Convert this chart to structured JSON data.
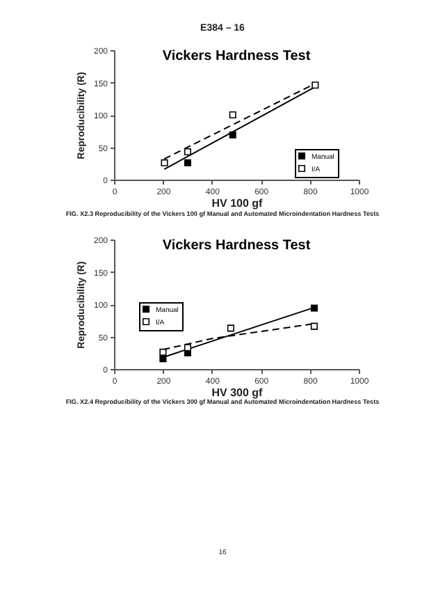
{
  "chart_data": [
    {
      "type": "scatter",
      "title": "Vickers Hardness Test",
      "xlabel": "HV 100 gf",
      "ylabel": "Reproducibility (R)",
      "annotations": [
        "E384 – 16",
        "FIG. X2.3 Reproducibility of the Vickers 100 gf Manual and Automated Microindentation Hardness Tests"
      ],
      "xlim": [
        0,
        1000
      ],
      "xticks": [
        0,
        200,
        400,
        600,
        800,
        1000
      ],
      "ylim": [
        0,
        200
      ],
      "yticks": [
        0,
        50,
        100,
        150,
        200
      ],
      "marker": "square",
      "legend": "bottom right",
      "series": [
        {
          "name": "Manual",
          "color": "#000000",
          "x": [
            301,
            485
          ],
          "values": [
            26,
            69
          ]
        },
        {
          "name": "I/A",
          "color": "#ffffff",
          "x": [
            206,
            301,
            485,
            822
          ],
          "values": [
            26,
            43,
            100,
            146
          ]
        },
        {
          "type": "line",
          "color": "#000000",
          "line_style": "solid",
          "marker": "none",
          "x": [
            205,
            820
          ],
          "values": [
            16,
            143
          ]
        },
        {
          "type": "line",
          "color": "#000000",
          "line_style": "dashed",
          "marker": "none",
          "x": [
            205,
            820
          ],
          "values": [
            32,
            148
          ]
        }
      ]
    },
    {
      "type": "scatter",
      "title": "Vickers Hardness Test",
      "xlabel": "HV 300 gf",
      "ylabel": "Reproducibility (R)",
      "annotations": [
        "FIG. X2.4 Reproducibility of the Vickers 300 gf Manual and Automated Microindentation Hardness Tests",
        "16"
      ],
      "xlim": [
        0,
        1000
      ],
      "xticks": [
        0,
        200,
        400,
        600,
        800,
        1000
      ],
      "ylim": [
        0,
        200
      ],
      "yticks": [
        0,
        50,
        100,
        150,
        200
      ],
      "marker": "square",
      "legend": "left",
      "series": [
        {
          "name": "Manual",
          "color": "#000000",
          "x": [
            200,
            301,
            818
          ],
          "values": [
            16,
            25,
            94
          ]
        },
        {
          "name": "I/A",
          "color": "#ffffff",
          "x": [
            200,
            301,
            477,
            818
          ],
          "values": [
            26,
            33,
            63,
            66
          ]
        },
        {
          "type": "line",
          "color": "#000000",
          "line_style": "solid",
          "marker": "none",
          "x": [
            200,
            818
          ],
          "values": [
            18,
            95
          ]
        },
        {
          "type": "line",
          "color": "#000000",
          "line_style": "dashed",
          "marker": "none",
          "x": [
            200,
            400,
            818
          ],
          "values": [
            30,
            47,
            70
          ]
        }
      ]
    }
  ]
}
